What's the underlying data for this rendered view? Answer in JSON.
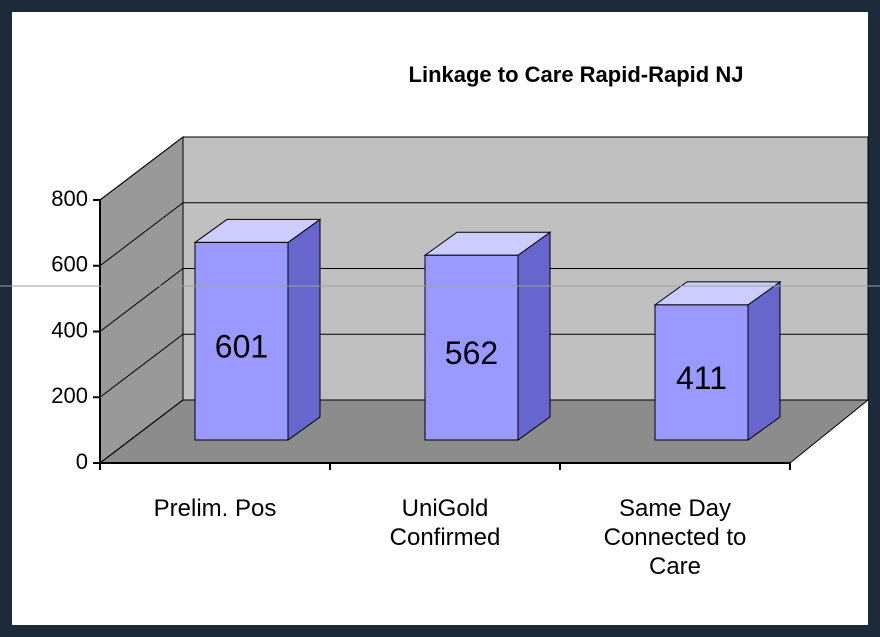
{
  "chart_data": {
    "type": "bar",
    "title": "Linkage to Care Rapid-Rapid NJ",
    "categories": [
      "Prelim. Pos",
      "UniGold Confirmed",
      "Same Day Connected to Care"
    ],
    "values": [
      601,
      562,
      411
    ],
    "color": "#9999ff",
    "ylim": [
      0,
      800
    ],
    "yticks": [
      0,
      200,
      400,
      600,
      800
    ],
    "grid": true
  }
}
